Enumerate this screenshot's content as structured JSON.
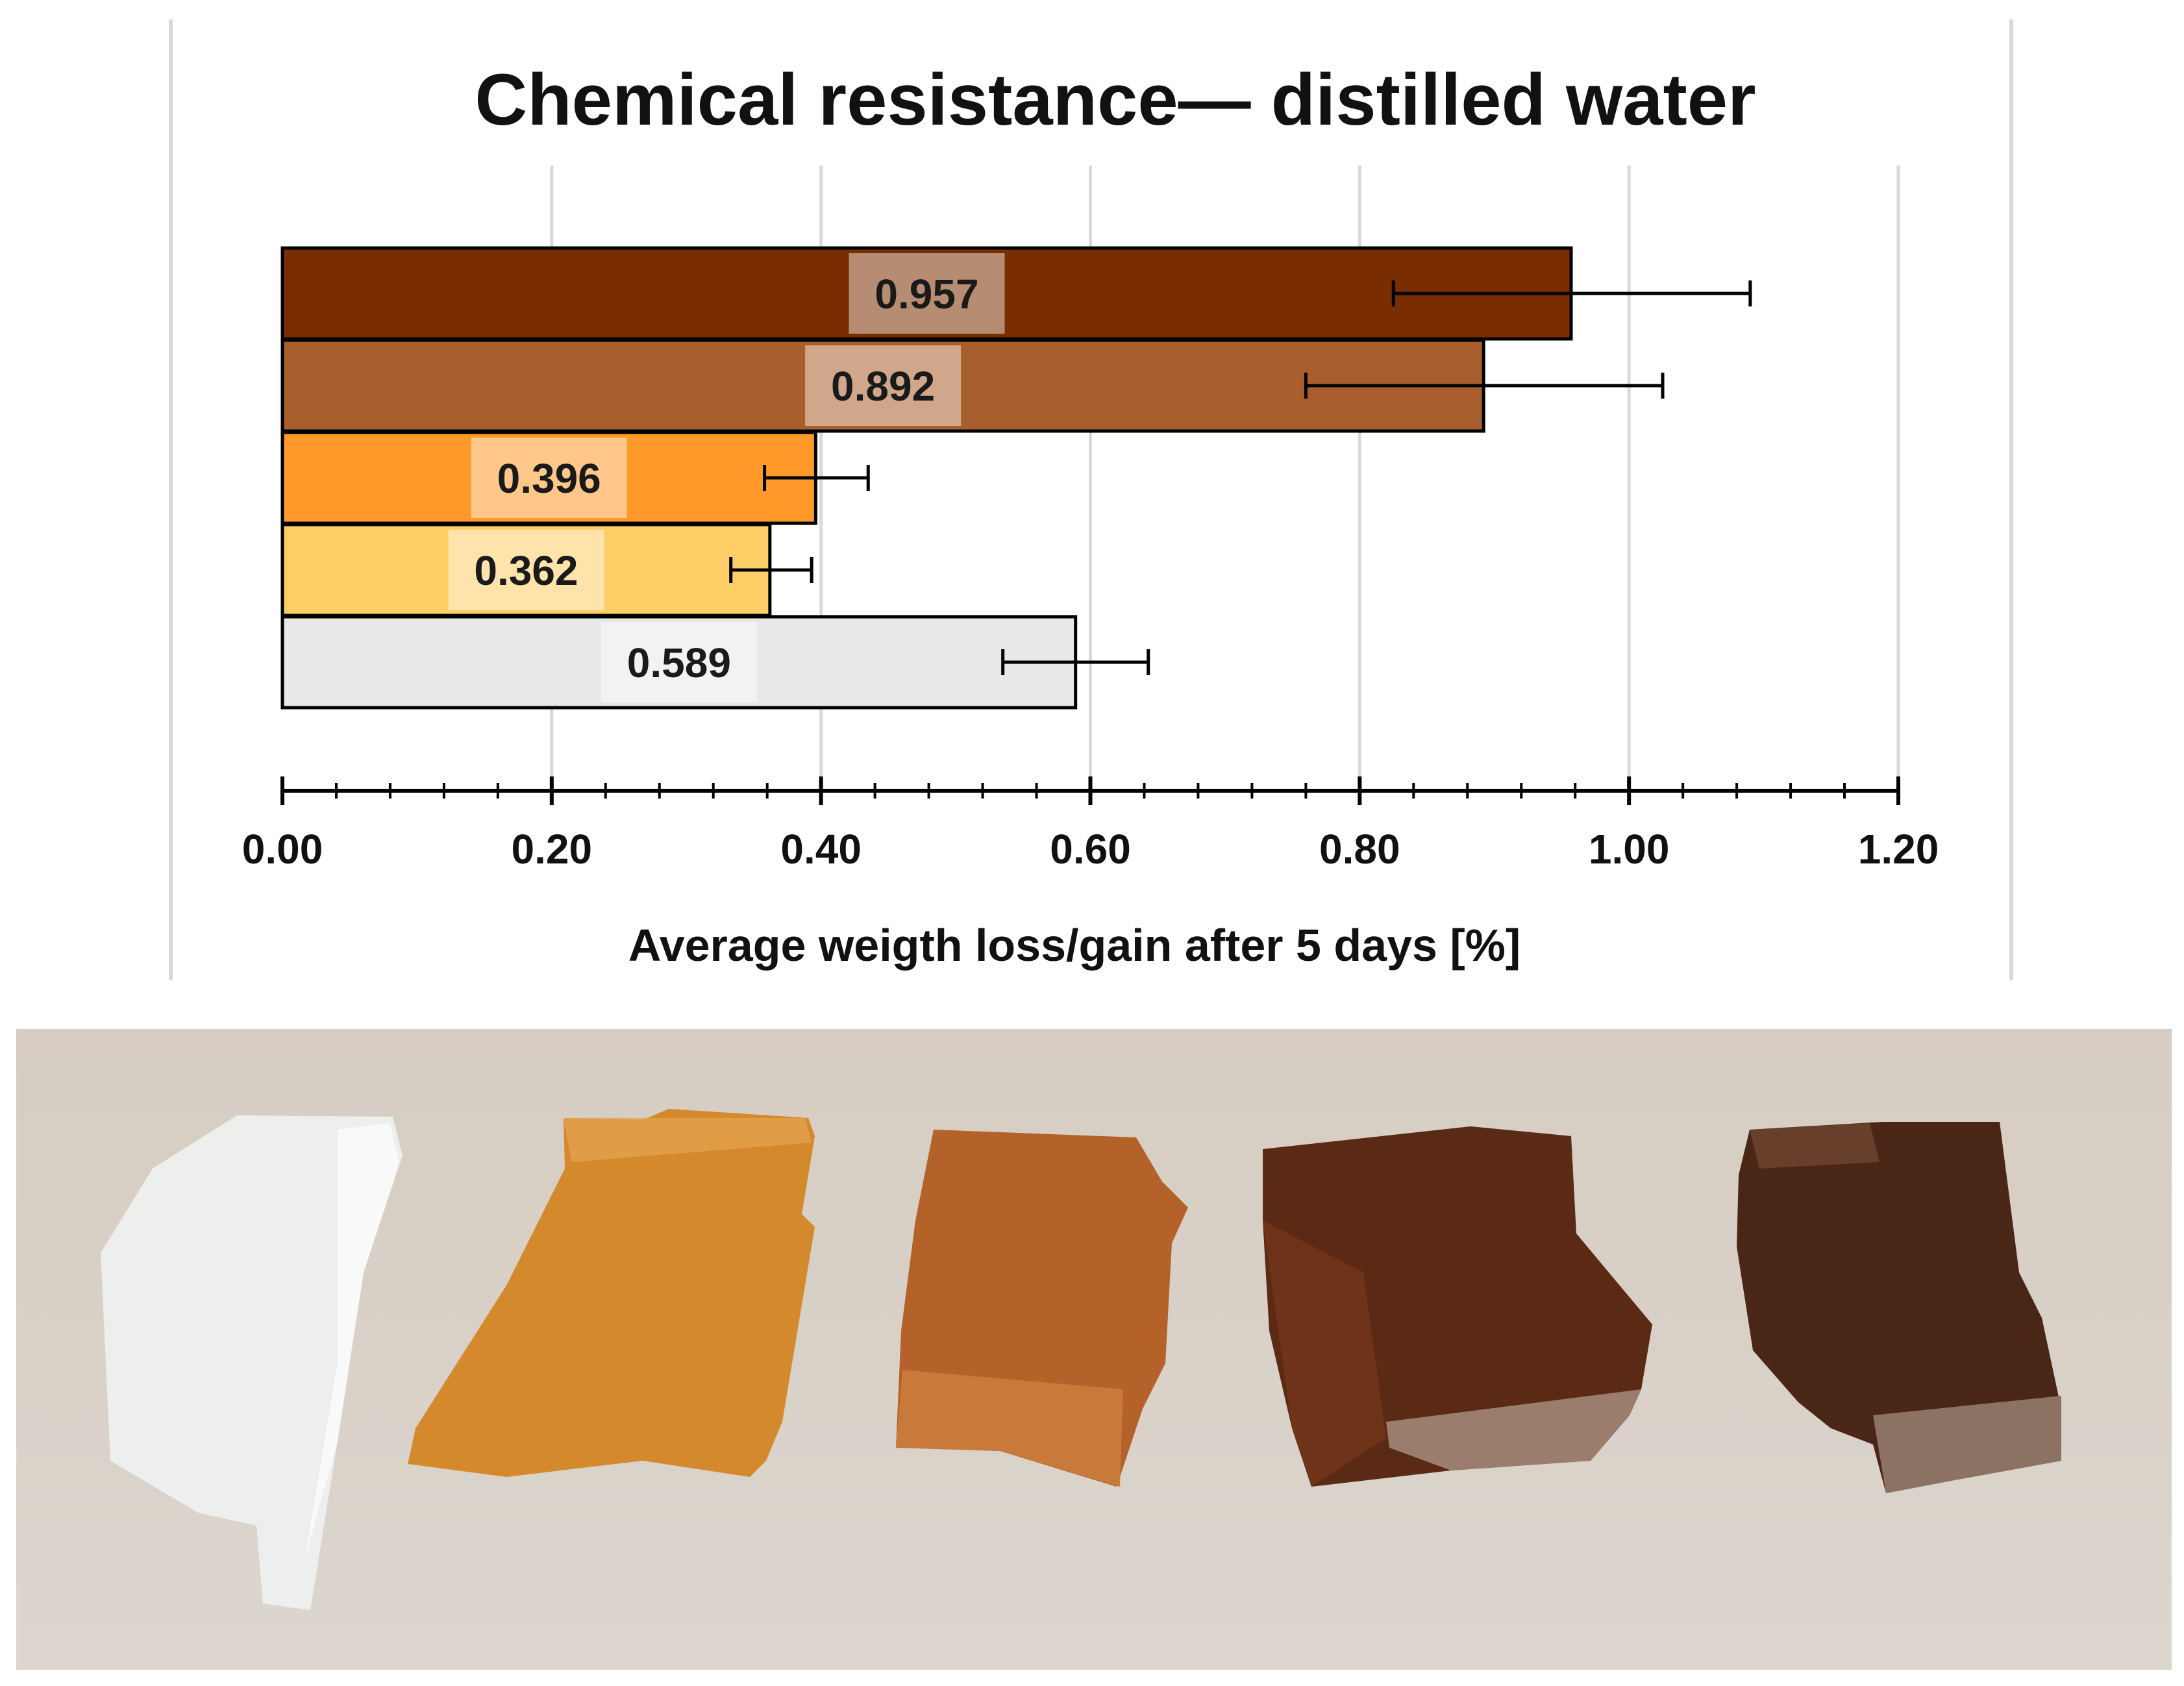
{
  "chart_data": {
    "type": "bar",
    "orientation": "horizontal",
    "title": "Chemical resistance— distilled water",
    "xlabel": "Average weigth loss/gain after 5 days [%]",
    "ylabel": "",
    "xlim": [
      0,
      1.2
    ],
    "major_ticks": [
      0.0,
      0.2,
      0.4,
      0.6,
      0.8,
      1.0,
      1.2
    ],
    "tick_labels": [
      "0.00",
      "0.20",
      "0.40",
      "0.60",
      "0.80",
      "1.00",
      "1.20"
    ],
    "minor_tick_step": 0.04,
    "grid": true,
    "legend": "none",
    "bars": [
      {
        "value": 0.957,
        "label": "0.957",
        "error": [
          0.825,
          1.09
        ],
        "color": "#7a2e00"
      },
      {
        "value": 0.892,
        "label": "0.892",
        "error": [
          0.76,
          1.025
        ],
        "color": "#a95f2d"
      },
      {
        "value": 0.396,
        "label": "0.396",
        "error": [
          0.358,
          0.435
        ],
        "color": "#ff9a2a"
      },
      {
        "value": 0.362,
        "label": "0.362",
        "error": [
          0.333,
          0.393
        ],
        "color": "#fdcd66"
      },
      {
        "value": 0.589,
        "label": "0.589",
        "error": [
          0.535,
          0.643
        ],
        "color": "#e8e8e8"
      }
    ]
  },
  "photo": {
    "background": "#d9d1c8",
    "samples": [
      {
        "icon": "white-translucent-sample",
        "color": "#eef0ef"
      },
      {
        "icon": "amber-sample",
        "color": "#d48a2c"
      },
      {
        "icon": "orange-brown-sample",
        "color": "#b4622a"
      },
      {
        "icon": "brown-sample",
        "color": "#5a2a15"
      },
      {
        "icon": "dark-brown-sample",
        "color": "#4a2616"
      }
    ]
  }
}
